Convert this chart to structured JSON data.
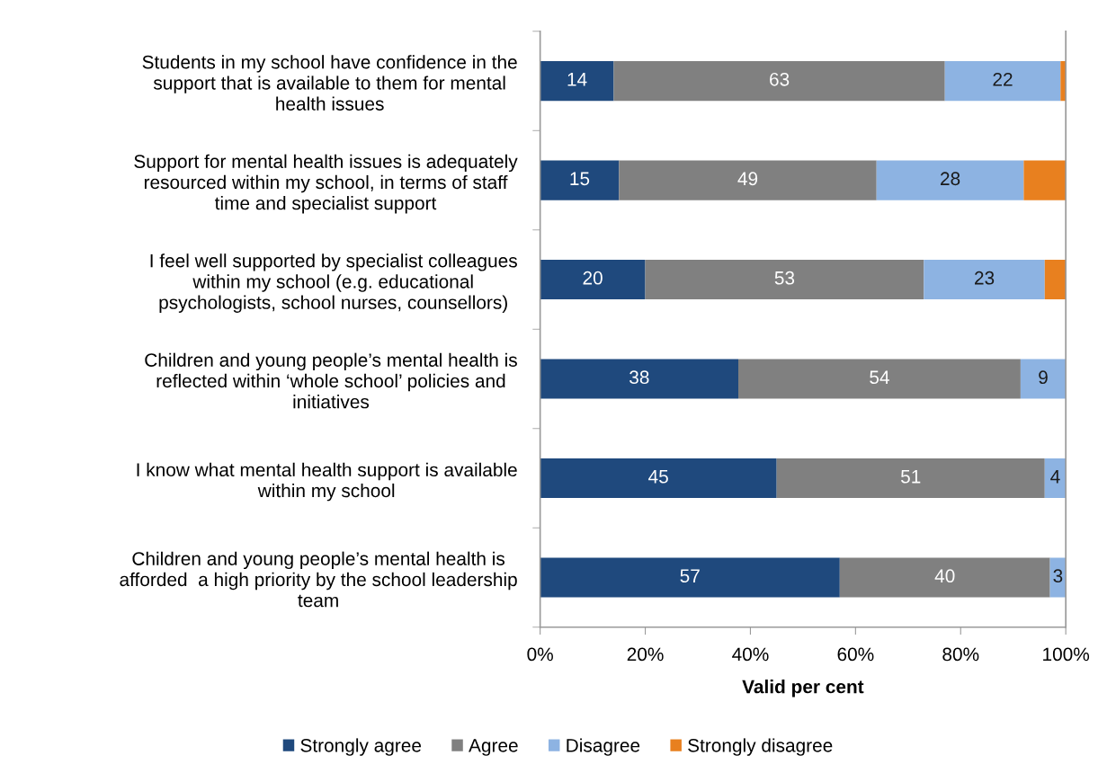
{
  "chart_data": {
    "type": "bar",
    "orientation": "horizontal",
    "stacked": true,
    "xlabel": "Valid per cent",
    "categories": [
      "Students in my school have confidence in the\nsupport that is available to them for mental\nhealth issues",
      "Support for mental health issues is adequately\nresourced within my school, in terms of staff\ntime and specialist support",
      "I feel well supported by specialist colleagues\nwithin my school (e.g. educational\npsychologists, school nurses, counsellors)",
      "Children and young people’s mental health is\nreflected within ‘whole school’ policies and\ninitiatives",
      "I know what mental health support is available\nwithin my school",
      "Children and young people’s mental health is\nafforded  a high priority by the school leadership\nteam"
    ],
    "series": [
      {
        "name": "Strongly agree",
        "color": "#1f497d",
        "values": [
          14,
          15,
          20,
          37.7,
          45,
          57
        ],
        "value_labels": [
          "14",
          "15",
          "20",
          "38",
          "45",
          "57"
        ]
      },
      {
        "name": "Agree",
        "color": "#808080",
        "values": [
          63,
          49,
          53,
          53.7,
          51,
          40
        ],
        "value_labels": [
          "63",
          "49",
          "53",
          "54",
          "51",
          "40"
        ]
      },
      {
        "name": "Disagree",
        "color": "#8db3e2",
        "values": [
          22,
          28,
          23,
          8.6,
          4,
          3
        ],
        "value_labels": [
          "22",
          "28",
          "23",
          "9",
          "4",
          "3"
        ]
      },
      {
        "name": "Strongly disagree",
        "color": "#e8801f",
        "values": [
          1,
          8,
          4,
          null,
          null,
          null
        ]
      }
    ],
    "xlim": [
      0,
      100
    ],
    "xticks": [
      {
        "value": 0,
        "label": "0%"
      },
      {
        "value": 20,
        "label": "20%"
      },
      {
        "value": 40,
        "label": "40%"
      },
      {
        "value": 60,
        "label": "60%"
      },
      {
        "value": 80,
        "label": "80%"
      },
      {
        "value": 100,
        "label": "100%"
      }
    ],
    "legend": "bottom"
  }
}
